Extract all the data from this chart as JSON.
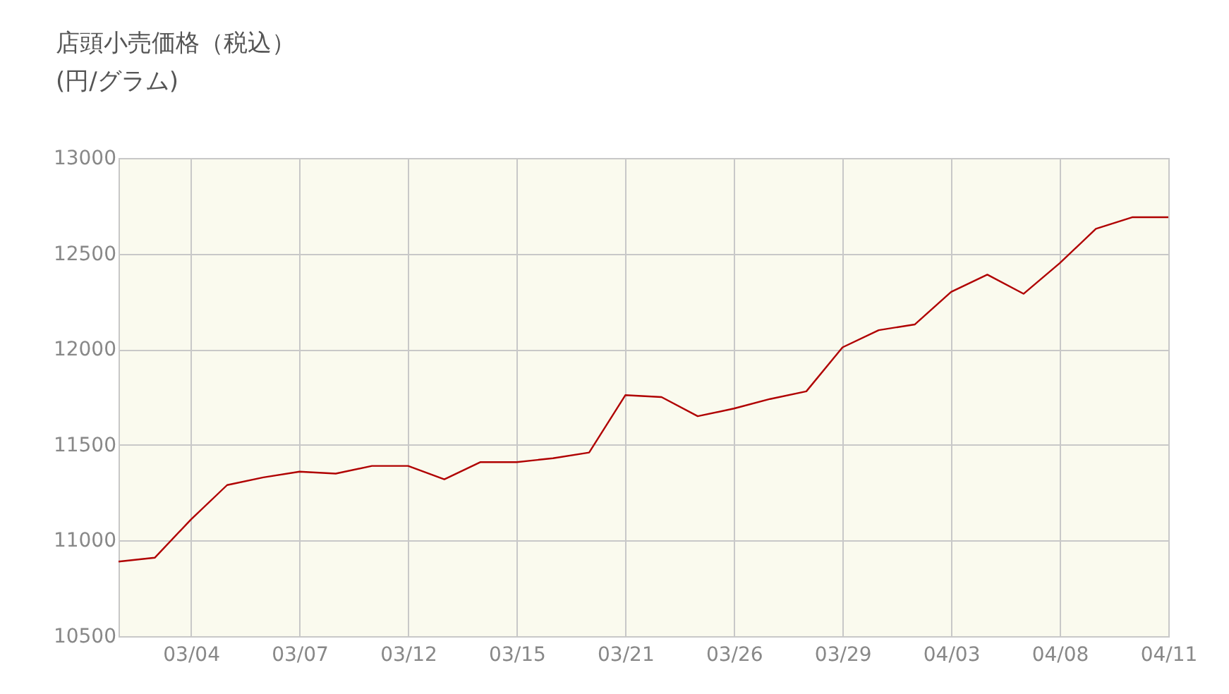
{
  "chart_data": {
    "type": "line",
    "title": "店頭小売価格（税込）",
    "subtitle": "(円/グラム)",
    "categories": [
      null,
      null,
      "03/04",
      null,
      null,
      "03/07",
      null,
      null,
      "03/12",
      null,
      null,
      "03/15",
      null,
      null,
      "03/21",
      null,
      null,
      "03/26",
      null,
      null,
      "03/29",
      null,
      null,
      "04/03",
      null,
      null,
      "04/08",
      null,
      null,
      "04/11"
    ],
    "series": [
      {
        "color": "#b00000",
        "values": [
          10890,
          10910,
          11110,
          11290,
          11330,
          11360,
          11350,
          11390,
          11390,
          11320,
          11410,
          11410,
          11430,
          11460,
          11760,
          11750,
          11650,
          11690,
          11740,
          11780,
          12010,
          12100,
          12130,
          12300,
          12390,
          12290,
          12450,
          12630,
          12690,
          12690
        ]
      }
    ],
    "ylim": [
      10500,
      13000
    ],
    "yticks": [
      10500,
      11000,
      11500,
      12000,
      12500,
      13000
    ],
    "grid": true,
    "marker": "none",
    "line_style": "solid"
  }
}
